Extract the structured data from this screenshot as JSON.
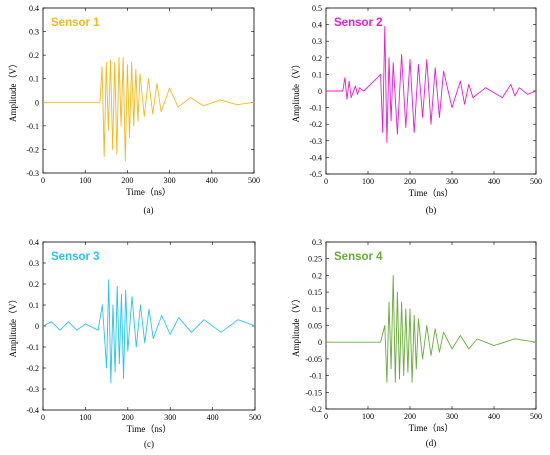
{
  "chart_data": [
    {
      "type": "line",
      "title": "Sensor 1",
      "caption": "(a)",
      "xlabel": "Time（ns）",
      "ylabel": "Amplitude（V）",
      "color": "#F5B81C",
      "xlim": [
        0,
        500
      ],
      "ylim": [
        -0.3,
        0.4
      ],
      "xticks": [
        0,
        100,
        200,
        300,
        400,
        500
      ],
      "yticks": [
        -0.3,
        -0.2,
        -0.1,
        0,
        0.1,
        0.2,
        0.3,
        0.4
      ],
      "ytick_labels": [
        "-0.3",
        "-0.2",
        "-0.1",
        "0",
        "0.1",
        "0.2",
        "0.3",
        "0.4"
      ],
      "x": [
        0,
        135,
        140,
        145,
        150,
        155,
        160,
        165,
        170,
        175,
        180,
        185,
        190,
        195,
        200,
        205,
        210,
        215,
        220,
        225,
        230,
        240,
        250,
        260,
        270,
        280,
        300,
        320,
        350,
        380,
        420,
        460,
        500
      ],
      "y": [
        0,
        0,
        0.15,
        -0.23,
        0.17,
        -0.12,
        0.18,
        -0.2,
        0.17,
        -0.22,
        0.19,
        -0.1,
        0.19,
        -0.25,
        0.16,
        -0.15,
        0.17,
        -0.1,
        0.14,
        -0.08,
        0.12,
        -0.06,
        0.1,
        -0.05,
        0.08,
        -0.04,
        0.06,
        -0.02,
        0.02,
        -0.015,
        0.01,
        -0.01,
        0
      ]
    },
    {
      "type": "line",
      "title": "Sensor 2",
      "caption": "(b)",
      "xlabel": "Time（ns）",
      "ylabel": "Amplitude（V）",
      "color": "#E51ED2",
      "xlim": [
        0,
        500
      ],
      "ylim": [
        -0.5,
        0.5
      ],
      "xticks": [
        0,
        100,
        200,
        300,
        400,
        500
      ],
      "yticks": [
        -0.5,
        -0.4,
        -0.3,
        -0.2,
        -0.1,
        0,
        0.1,
        0.2,
        0.3,
        0.4,
        0.5
      ],
      "ytick_labels": [
        "-0.5",
        "-0.4",
        "-0.3",
        "-0.2",
        "-0.1",
        "0",
        "0.1",
        "0.2",
        "0.3",
        "0.4",
        "0.5"
      ],
      "x": [
        0,
        40,
        45,
        50,
        55,
        60,
        70,
        75,
        80,
        90,
        130,
        135,
        140,
        145,
        150,
        155,
        160,
        170,
        180,
        190,
        200,
        210,
        220,
        230,
        240,
        250,
        260,
        270,
        280,
        300,
        320,
        330,
        340,
        350,
        380,
        420,
        440,
        450,
        460,
        480,
        500
      ],
      "y": [
        0,
        0,
        0.08,
        -0.05,
        0.06,
        -0.04,
        0.03,
        -0.02,
        0.02,
        0,
        0.1,
        -0.25,
        0.39,
        -0.31,
        0.2,
        -0.18,
        0.17,
        -0.26,
        0.22,
        -0.22,
        0.19,
        -0.25,
        0.16,
        -0.16,
        0.19,
        -0.2,
        0.14,
        -0.16,
        0.12,
        -0.1,
        0.06,
        -0.08,
        0.04,
        -0.04,
        0.02,
        -0.04,
        0.04,
        -0.03,
        0.02,
        -0.02,
        0
      ]
    },
    {
      "type": "line",
      "title": "Sensor 3",
      "caption": "(c)",
      "xlabel": "Time（ns）",
      "ylabel": "Amplitude（V）",
      "color": "#29C3EE",
      "xlim": [
        0,
        500
      ],
      "ylim": [
        -0.4,
        0.4
      ],
      "xticks": [
        0,
        100,
        200,
        300,
        400,
        500
      ],
      "yticks": [
        -0.4,
        -0.3,
        -0.2,
        -0.1,
        0,
        0.1,
        0.2,
        0.3,
        0.4
      ],
      "ytick_labels": [
        "-0.4",
        "-0.3",
        "-0.2",
        "-0.1",
        "0",
        "0.1",
        "0.2",
        "0.3",
        "0.4"
      ],
      "x": [
        0,
        20,
        40,
        60,
        80,
        100,
        130,
        140,
        150,
        155,
        160,
        165,
        170,
        175,
        180,
        185,
        190,
        195,
        200,
        210,
        220,
        230,
        240,
        250,
        260,
        280,
        300,
        320,
        350,
        380,
        420,
        460,
        500
      ],
      "y": [
        0,
        0.02,
        -0.02,
        0.02,
        -0.02,
        0.01,
        -0.02,
        0.1,
        -0.2,
        0.22,
        -0.27,
        0.1,
        -0.22,
        0.19,
        -0.18,
        0.15,
        -0.25,
        0.17,
        -0.12,
        0.14,
        -0.1,
        0.1,
        -0.08,
        0.08,
        -0.06,
        0.05,
        -0.04,
        0.04,
        -0.03,
        0.03,
        -0.03,
        0.03,
        0
      ]
    },
    {
      "type": "line",
      "title": "Sensor 4",
      "caption": "(d)",
      "xlabel": "Time（ns）",
      "ylabel": "Amplitude（V）",
      "color": "#6AAA3A",
      "xlim": [
        0,
        500
      ],
      "ylim": [
        -0.2,
        0.3
      ],
      "xticks": [
        0,
        100,
        200,
        300,
        400,
        500
      ],
      "yticks": [
        -0.2,
        -0.15,
        -0.1,
        -0.05,
        0,
        0.05,
        0.1,
        0.15,
        0.2,
        0.25,
        0.3
      ],
      "ytick_labels": [
        "-0.2",
        "-0.15",
        "-0.1",
        "-0.05",
        "0",
        "0.05",
        "0.1",
        "0.15",
        "0.2",
        "0.25",
        "0.3"
      ],
      "x": [
        0,
        100,
        130,
        140,
        145,
        150,
        155,
        160,
        165,
        170,
        175,
        180,
        185,
        190,
        195,
        200,
        205,
        210,
        215,
        220,
        230,
        240,
        250,
        260,
        270,
        280,
        300,
        320,
        340,
        360,
        400,
        450,
        500
      ],
      "y": [
        0,
        0,
        0,
        0.05,
        -0.12,
        0.12,
        -0.08,
        0.2,
        -0.12,
        0.15,
        -0.11,
        0.12,
        -0.1,
        0.1,
        -0.09,
        0.1,
        -0.12,
        0.08,
        -0.08,
        0.07,
        -0.05,
        0.05,
        -0.04,
        0.04,
        -0.03,
        0.03,
        -0.02,
        0.02,
        -0.02,
        0.01,
        -0.01,
        0.01,
        0
      ]
    }
  ]
}
